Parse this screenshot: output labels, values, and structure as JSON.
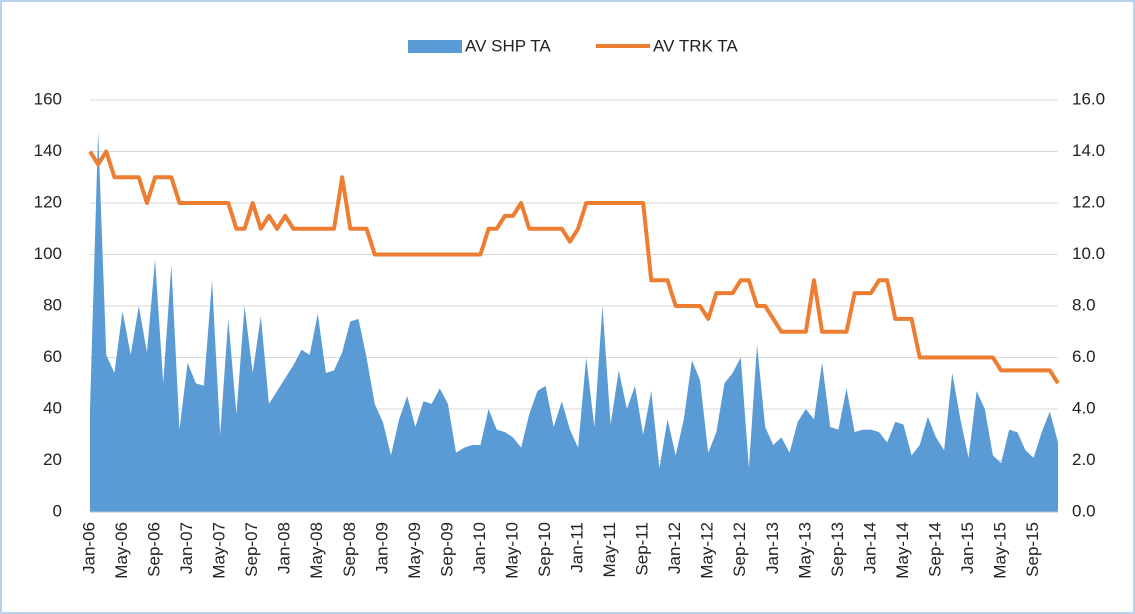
{
  "chart_data": {
    "type": "area-line",
    "categories": [
      "Jan-06",
      null,
      null,
      null,
      "May-06",
      null,
      null,
      null,
      "Sep-06",
      null,
      null,
      null,
      "Jan-07",
      null,
      null,
      null,
      "May-07",
      null,
      null,
      null,
      "Sep-07",
      null,
      null,
      null,
      "Jan-08",
      null,
      null,
      null,
      "May-08",
      null,
      null,
      null,
      "Sep-08",
      null,
      null,
      null,
      "Jan-09",
      null,
      null,
      null,
      "May-09",
      null,
      null,
      null,
      "Sep-09",
      null,
      null,
      null,
      "Jan-10",
      null,
      null,
      null,
      "May-10",
      null,
      null,
      null,
      "Sep-10",
      null,
      null,
      null,
      "Jan-11",
      null,
      null,
      null,
      "May-11",
      null,
      null,
      null,
      "Sep-11",
      null,
      null,
      null,
      "Jan-12",
      null,
      null,
      null,
      "May-12",
      null,
      null,
      null,
      "Sep-12",
      null,
      null,
      null,
      "Jan-13",
      null,
      null,
      null,
      "May-13",
      null,
      null,
      null,
      "Sep-13",
      null,
      null,
      null,
      "Jan-14",
      null,
      null,
      null,
      "May-14",
      null,
      null,
      null,
      "Sep-14",
      null,
      null,
      null,
      "Jan-15",
      null,
      null,
      null,
      "May-15",
      null,
      null,
      null,
      "Sep-15",
      null,
      null,
      null
    ],
    "series": [
      {
        "name": "AV SHP TA",
        "type": "area",
        "color": "#5b9bd5",
        "axis": "y",
        "values": [
          40,
          148,
          61,
          54,
          78,
          61,
          80,
          62,
          98,
          50,
          96,
          32,
          58,
          50,
          49,
          90,
          30,
          75,
          38,
          80,
          54,
          76,
          42,
          47,
          52,
          57,
          63,
          61,
          77,
          54,
          55,
          62,
          74,
          75,
          60,
          42,
          35,
          22,
          36,
          45,
          33,
          43,
          42,
          48,
          42,
          23,
          25,
          26,
          26,
          40,
          32,
          31,
          29,
          25,
          38,
          47,
          49,
          33,
          43,
          32,
          25,
          60,
          33,
          80,
          34,
          55,
          40,
          49,
          30,
          47,
          17,
          36,
          22,
          36,
          59,
          51,
          23,
          31,
          50,
          54,
          60,
          17,
          65,
          33,
          26,
          29,
          23,
          35,
          40,
          36,
          58,
          33,
          32,
          48,
          31,
          32,
          32,
          31,
          27,
          35,
          34,
          22,
          26,
          37,
          29,
          24,
          54,
          36,
          21,
          47,
          40,
          22,
          19,
          32,
          31,
          24,
          21,
          31,
          39,
          27
        ]
      },
      {
        "name": "AV TRK TA",
        "type": "line",
        "color": "#ed7d31",
        "axis": "y2",
        "values": [
          14,
          13.5,
          14,
          13,
          13,
          13,
          13,
          12,
          13,
          13,
          13,
          12,
          12,
          12,
          12,
          12,
          12,
          12,
          11,
          11,
          12,
          11,
          11.5,
          11,
          11.5,
          11,
          11,
          11,
          11,
          11,
          11,
          13,
          11,
          11,
          11,
          10,
          10,
          10,
          10,
          10,
          10,
          10,
          10,
          10,
          10,
          10,
          10,
          10,
          10,
          11,
          11,
          11.5,
          11.5,
          12,
          11,
          11,
          11,
          11,
          11,
          10.5,
          11,
          12,
          12,
          12,
          12,
          12,
          12,
          12,
          12,
          9,
          9,
          9,
          8,
          8,
          8,
          8,
          7.5,
          8.5,
          8.5,
          8.5,
          9,
          9,
          8,
          8,
          7.5,
          7,
          7,
          7,
          7,
          9,
          7,
          7,
          7,
          7,
          8.5,
          8.5,
          8.5,
          9,
          9,
          7.5,
          7.5,
          7.5,
          6,
          6,
          6,
          6,
          6,
          6,
          6,
          6,
          6,
          6,
          5.5,
          5.5,
          5.5,
          5.5,
          5.5,
          5.5,
          5.5,
          5
        ]
      }
    ],
    "ylim": [
      0,
      160
    ],
    "yticks": [
      0,
      20,
      40,
      60,
      80,
      100,
      120,
      140,
      160
    ],
    "y2lim": [
      0,
      16
    ],
    "y2ticks": [
      {
        "value": 0,
        "label": "0.0"
      },
      {
        "value": 2,
        "label": "2.0"
      },
      {
        "value": 4,
        "label": "4.0"
      },
      {
        "value": 6,
        "label": "6.0"
      },
      {
        "value": 8,
        "label": "8.0"
      },
      {
        "value": 10,
        "label": "10.0"
      },
      {
        "value": 12,
        "label": "12.0"
      },
      {
        "value": 14,
        "label": "14.0"
      },
      {
        "value": 16,
        "label": "16.0"
      }
    ],
    "grid": true,
    "legend": "top"
  }
}
